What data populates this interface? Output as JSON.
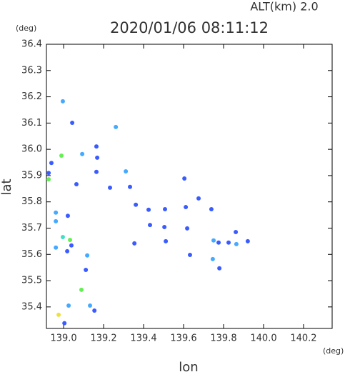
{
  "chart_data": {
    "type": "scatter",
    "title": "2020/01/06 08:11:12",
    "annotation": "ALT(km)  2.0",
    "x_label": "lon",
    "y_label": "lat",
    "x_unit": "(deg)",
    "y_unit": "(deg)",
    "xlim": [
      138.914,
      140.343
    ],
    "ylim": [
      35.318,
      36.4
    ],
    "xticks": [
      {
        "value": 139.0,
        "label": "139.0"
      },
      139.2,
      139.4,
      139.6,
      139.8,
      {
        "value": 140.0,
        "label": "140.0"
      },
      140.2
    ],
    "yticks": [
      35.4,
      35.5,
      35.6,
      35.7,
      35.8,
      35.9,
      {
        "value": 36.0,
        "label": "36.0"
      },
      36.1,
      36.2,
      36.3,
      36.4
    ],
    "series": [
      {
        "color": "#3a5cff",
        "x": [
          139.043,
          138.939,
          138.925,
          139.064,
          139.021,
          139.039,
          139.018,
          139.111,
          139.004,
          139.154,
          139.164,
          139.164,
          139.232,
          139.332,
          139.361,
          139.425,
          139.432,
          139.507,
          139.504,
          139.511,
          139.611,
          139.618,
          139.675,
          139.739,
          139.775,
          139.779,
          139.825,
          139.861,
          139.921,
          139.632,
          139.354,
          139.604,
          139.168
        ],
        "y": [
          36.101,
          35.948,
          35.91,
          35.867,
          35.747,
          35.634,
          35.612,
          35.541,
          35.338,
          35.386,
          36.011,
          35.914,
          35.854,
          35.857,
          35.789,
          35.77,
          35.712,
          35.772,
          35.704,
          35.65,
          35.78,
          35.699,
          35.813,
          35.772,
          35.645,
          35.547,
          35.645,
          35.685,
          35.65,
          35.598,
          35.642,
          35.889,
          35.968
        ]
      },
      {
        "color": "#44aaff",
        "x": [
          138.996,
          139.093,
          138.961,
          138.961,
          138.961,
          139.118,
          139.025,
          139.132,
          139.311,
          139.75,
          139.746,
          139.864,
          139.261
        ],
        "y": [
          36.183,
          35.982,
          35.759,
          35.726,
          35.626,
          35.596,
          35.405,
          35.405,
          35.916,
          35.653,
          35.582,
          35.639,
          36.085
        ]
      },
      {
        "color": "#3ee0c8",
        "x": [
          138.996
        ],
        "y": [
          35.666
        ]
      },
      {
        "color": "#66ee55",
        "x": [
          138.989,
          138.925,
          139.032,
          139.089
        ],
        "y": [
          35.976,
          35.886,
          35.655,
          35.465
        ]
      },
      {
        "color": "#eee040",
        "x": [
          138.975
        ],
        "y": [
          35.37
        ]
      }
    ]
  }
}
